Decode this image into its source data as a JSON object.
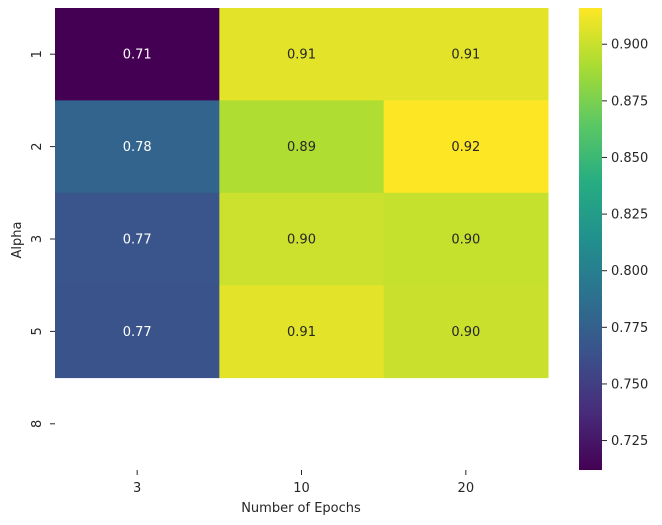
{
  "chart_data": {
    "type": "heatmap",
    "title": "",
    "xlabel": "Number of Epochs",
    "ylabel": "Alpha",
    "x_categories": [
      "3",
      "10",
      "20"
    ],
    "y_categories": [
      "1",
      "2",
      "3",
      "5",
      "8"
    ],
    "values": [
      [
        0.712,
        0.908,
        0.908
      ],
      [
        0.778,
        0.892,
        0.916
      ],
      [
        0.766,
        0.901,
        0.899
      ],
      [
        0.765,
        0.908,
        0.9
      ],
      [
        null,
        null,
        null
      ]
    ],
    "annotations": [
      [
        "0.71",
        "0.91",
        "0.91"
      ],
      [
        "0.78",
        "0.89",
        "0.92"
      ],
      [
        "0.77",
        "0.90",
        "0.90"
      ],
      [
        "0.77",
        "0.91",
        "0.90"
      ],
      [
        "",
        "",
        ""
      ]
    ],
    "colormap": "viridis",
    "colorbar": {
      "vmin": 0.712,
      "vmax": 0.916,
      "ticks": [
        0.725,
        0.75,
        0.775,
        0.8,
        0.825,
        0.85,
        0.875,
        0.9
      ],
      "tick_labels": [
        "0.725",
        "0.750",
        "0.775",
        "0.800",
        "0.825",
        "0.850",
        "0.875",
        "0.900"
      ]
    },
    "colors": {
      "annot_light": "#ffffff",
      "annot_dark": "#262626",
      "axis_text": "#262626",
      "missing": "#ffffff"
    }
  }
}
